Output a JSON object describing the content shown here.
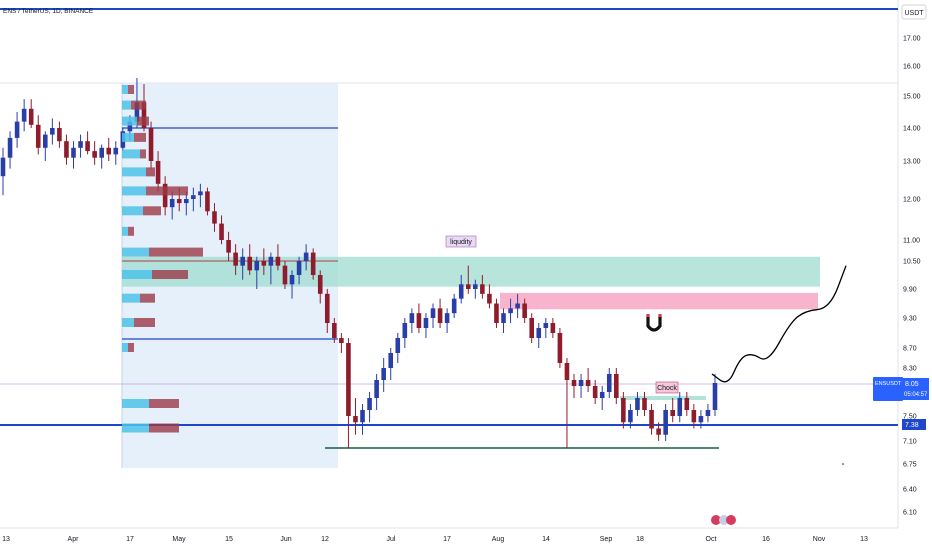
{
  "header": {
    "symbol_title": "ENS / TetherUS, 1D, BINANCE",
    "currency": "USDT"
  },
  "colors": {
    "up": "#2a3ea8",
    "down": "#8e1c2c",
    "support_line": "#1e47c9",
    "liquidity_zone": "#9fdcd0",
    "supply_zone": "#f7a7c3",
    "range_shade": "#e6f0fa",
    "price_badge": "#2962ff",
    "level_badge": "#1e47c9",
    "volume_up": "#4ec2e8",
    "volume_down": "#9b3a47",
    "bottom_line": "#1b5e3c"
  },
  "chart_data": {
    "type": "candlestick",
    "x_axis_labels": [
      "13",
      "Apr",
      "17",
      "May",
      "15",
      "Jun",
      "12",
      "Jul",
      "17",
      "Aug",
      "14",
      "Sep",
      "18",
      "Oct",
      "16",
      "Nov",
      "13"
    ],
    "y_axis_labels": [
      "17.00",
      "16.00",
      "15.00",
      "14.00",
      "13.00",
      "12.00",
      "11.00",
      "10.50",
      "9.90",
      "9.30",
      "8.70",
      "8.30",
      "7.50",
      "7.10",
      "6.75",
      "6.40",
      "6.10"
    ],
    "y_range": [
      5.9,
      18.5
    ],
    "annotations": {
      "liquidity_label": "liqudity",
      "choch_label": "Chock",
      "magnet_symbol": "magnet-icon"
    },
    "price": {
      "symbol": "ENSUSDT",
      "value": "8.05",
      "countdown": "05:04:57"
    },
    "support_level": "7.38",
    "horizontal_levels": [
      14.0,
      8.9,
      7.4,
      7.0
    ],
    "zones": [
      {
        "name": "liquidity",
        "top": 10.6,
        "bottom": 9.95
      },
      {
        "name": "supply",
        "top": 9.82,
        "bottom": 9.48
      }
    ],
    "series": [
      {
        "name": "ENSUSDT",
        "ohlc": [
          [
            12.6,
            13.4,
            12.1,
            13.1
          ],
          [
            13.1,
            13.9,
            12.8,
            13.7
          ],
          [
            13.7,
            14.5,
            13.4,
            14.2
          ],
          [
            14.2,
            14.9,
            13.9,
            14.6
          ],
          [
            14.6,
            14.9,
            14.0,
            14.1
          ],
          [
            14.1,
            14.4,
            13.2,
            13.4
          ],
          [
            13.4,
            13.9,
            13.0,
            13.8
          ],
          [
            13.8,
            14.3,
            13.5,
            14.0
          ],
          [
            14.0,
            14.2,
            13.4,
            13.6
          ],
          [
            13.6,
            13.8,
            12.9,
            13.1
          ],
          [
            13.1,
            13.6,
            12.8,
            13.4
          ],
          [
            13.4,
            13.8,
            13.1,
            13.6
          ],
          [
            13.6,
            13.9,
            13.2,
            13.3
          ],
          [
            13.3,
            13.6,
            12.9,
            13.1
          ],
          [
            13.1,
            13.5,
            12.8,
            13.4
          ],
          [
            13.4,
            13.7,
            13.0,
            13.2
          ],
          [
            13.2,
            13.6,
            12.9,
            13.4
          ],
          [
            13.4,
            14.0,
            13.3,
            13.9
          ],
          [
            13.9,
            14.4,
            13.6,
            14.2
          ],
          [
            14.2,
            15.6,
            14.0,
            14.8
          ],
          [
            14.8,
            15.4,
            13.9,
            14.0
          ],
          [
            14.0,
            14.2,
            12.8,
            13.0
          ],
          [
            13.0,
            13.3,
            12.2,
            12.4
          ],
          [
            12.4,
            12.6,
            11.6,
            11.8
          ],
          [
            11.8,
            12.2,
            11.5,
            12.0
          ],
          [
            12.0,
            12.3,
            11.7,
            11.9
          ],
          [
            11.9,
            12.2,
            11.6,
            12.0
          ],
          [
            12.0,
            12.3,
            11.7,
            12.1
          ],
          [
            12.1,
            12.4,
            11.8,
            12.2
          ],
          [
            12.2,
            12.3,
            11.6,
            11.7
          ],
          [
            11.7,
            11.9,
            11.2,
            11.4
          ],
          [
            11.4,
            11.6,
            10.9,
            11.0
          ],
          [
            11.0,
            11.2,
            10.5,
            10.7
          ],
          [
            10.7,
            10.9,
            10.2,
            10.4
          ],
          [
            10.4,
            10.8,
            10.1,
            10.6
          ],
          [
            10.6,
            10.9,
            10.2,
            10.3
          ],
          [
            10.3,
            10.6,
            9.9,
            10.5
          ],
          [
            10.5,
            10.8,
            10.2,
            10.4
          ],
          [
            10.4,
            10.7,
            10.0,
            10.6
          ],
          [
            10.6,
            10.9,
            10.3,
            10.4
          ],
          [
            10.4,
            10.5,
            9.9,
            10.0
          ],
          [
            10.0,
            10.3,
            9.7,
            10.2
          ],
          [
            10.2,
            10.6,
            10.0,
            10.5
          ],
          [
            10.5,
            10.9,
            10.3,
            10.7
          ],
          [
            10.7,
            10.8,
            10.1,
            10.2
          ],
          [
            10.2,
            10.3,
            9.6,
            9.8
          ],
          [
            9.8,
            9.9,
            9.0,
            9.2
          ],
          [
            9.2,
            9.3,
            8.8,
            8.9
          ],
          [
            8.9,
            9.0,
            8.6,
            8.8
          ],
          [
            8.8,
            8.9,
            7.0,
            7.5
          ],
          [
            7.5,
            7.8,
            7.2,
            7.4
          ],
          [
            7.4,
            7.7,
            7.2,
            7.6
          ],
          [
            7.6,
            7.9,
            7.4,
            7.8
          ],
          [
            7.8,
            8.2,
            7.6,
            8.1
          ],
          [
            8.1,
            8.5,
            7.9,
            8.3
          ],
          [
            8.3,
            8.7,
            8.1,
            8.6
          ],
          [
            8.6,
            9.0,
            8.4,
            8.9
          ],
          [
            8.9,
            9.3,
            8.7,
            9.2
          ],
          [
            9.2,
            9.5,
            9.0,
            9.4
          ],
          [
            9.4,
            9.6,
            9.0,
            9.1
          ],
          [
            9.1,
            9.4,
            8.9,
            9.3
          ],
          [
            9.3,
            9.6,
            9.1,
            9.5
          ],
          [
            9.5,
            9.7,
            9.1,
            9.2
          ],
          [
            9.2,
            9.5,
            9.0,
            9.4
          ],
          [
            9.4,
            9.8,
            9.3,
            9.7
          ],
          [
            9.7,
            10.2,
            9.6,
            10.0
          ],
          [
            10.0,
            10.4,
            9.8,
            9.9
          ],
          [
            9.9,
            10.1,
            9.7,
            10.0
          ],
          [
            10.0,
            10.2,
            9.7,
            9.8
          ],
          [
            9.8,
            10.0,
            9.5,
            9.6
          ],
          [
            9.6,
            9.7,
            9.1,
            9.2
          ],
          [
            9.2,
            9.5,
            9.0,
            9.4
          ],
          [
            9.4,
            9.7,
            9.2,
            9.5
          ],
          [
            9.5,
            9.8,
            9.3,
            9.6
          ],
          [
            9.6,
            9.7,
            9.2,
            9.3
          ],
          [
            9.3,
            9.4,
            8.8,
            8.9
          ],
          [
            8.9,
            9.2,
            8.7,
            9.1
          ],
          [
            9.1,
            9.3,
            8.9,
            9.2
          ],
          [
            9.2,
            9.3,
            8.9,
            9.0
          ],
          [
            9.0,
            9.1,
            8.3,
            8.4
          ],
          [
            8.4,
            8.5,
            7.0,
            8.1
          ],
          [
            8.1,
            8.2,
            7.8,
            8.0
          ],
          [
            8.0,
            8.2,
            7.8,
            8.1
          ],
          [
            8.1,
            8.3,
            7.9,
            8.0
          ],
          [
            8.0,
            8.1,
            7.7,
            7.8
          ],
          [
            7.8,
            8.0,
            7.6,
            7.9
          ],
          [
            7.9,
            8.3,
            7.8,
            8.2
          ],
          [
            8.2,
            8.3,
            7.7,
            7.8
          ],
          [
            7.8,
            7.9,
            7.3,
            7.4
          ],
          [
            7.4,
            7.7,
            7.3,
            7.6
          ],
          [
            7.6,
            7.9,
            7.5,
            7.8
          ],
          [
            7.8,
            7.9,
            7.5,
            7.6
          ],
          [
            7.6,
            7.7,
            7.2,
            7.3
          ],
          [
            7.3,
            7.4,
            7.1,
            7.2
          ],
          [
            7.2,
            7.7,
            7.1,
            7.6
          ],
          [
            7.6,
            7.8,
            7.4,
            7.5
          ],
          [
            7.5,
            7.9,
            7.4,
            7.8
          ],
          [
            7.8,
            7.9,
            7.5,
            7.6
          ],
          [
            7.6,
            7.7,
            7.3,
            7.4
          ],
          [
            7.4,
            7.6,
            7.3,
            7.5
          ],
          [
            7.5,
            7.7,
            7.4,
            7.6
          ],
          [
            7.6,
            8.2,
            7.5,
            8.05
          ]
        ]
      }
    ],
    "volume_profile": [
      {
        "price": 15.2,
        "up": 0.1,
        "down": 0.1
      },
      {
        "price": 14.7,
        "up": 0.15,
        "down": 0.25
      },
      {
        "price": 14.2,
        "up": 0.25,
        "down": 0.2
      },
      {
        "price": 13.7,
        "up": 0.2,
        "down": 0.2
      },
      {
        "price": 13.2,
        "up": 0.3,
        "down": 0.1
      },
      {
        "price": 12.7,
        "up": 0.4,
        "down": 0.15
      },
      {
        "price": 12.2,
        "up": 0.4,
        "down": 0.7
      },
      {
        "price": 11.7,
        "up": 0.35,
        "down": 0.3
      },
      {
        "price": 11.2,
        "up": 0.1,
        "down": 0.1
      },
      {
        "price": 10.7,
        "up": 0.45,
        "down": 0.9
      },
      {
        "price": 10.2,
        "up": 0.5,
        "down": 0.6
      },
      {
        "price": 9.7,
        "up": 0.3,
        "down": 0.25
      },
      {
        "price": 9.2,
        "up": 0.2,
        "down": 0.35
      },
      {
        "price": 8.7,
        "up": 0.1,
        "down": 0.1
      },
      {
        "price": 7.7,
        "up": 0.45,
        "down": 0.5
      },
      {
        "price": 7.3,
        "up": 0.45,
        "down": 0.5
      }
    ],
    "projection_path": [
      [
        8.2,
        8.0,
        8.5,
        8.6,
        8.4,
        9.2,
        9.45,
        9.5,
        10.4
      ]
    ]
  }
}
